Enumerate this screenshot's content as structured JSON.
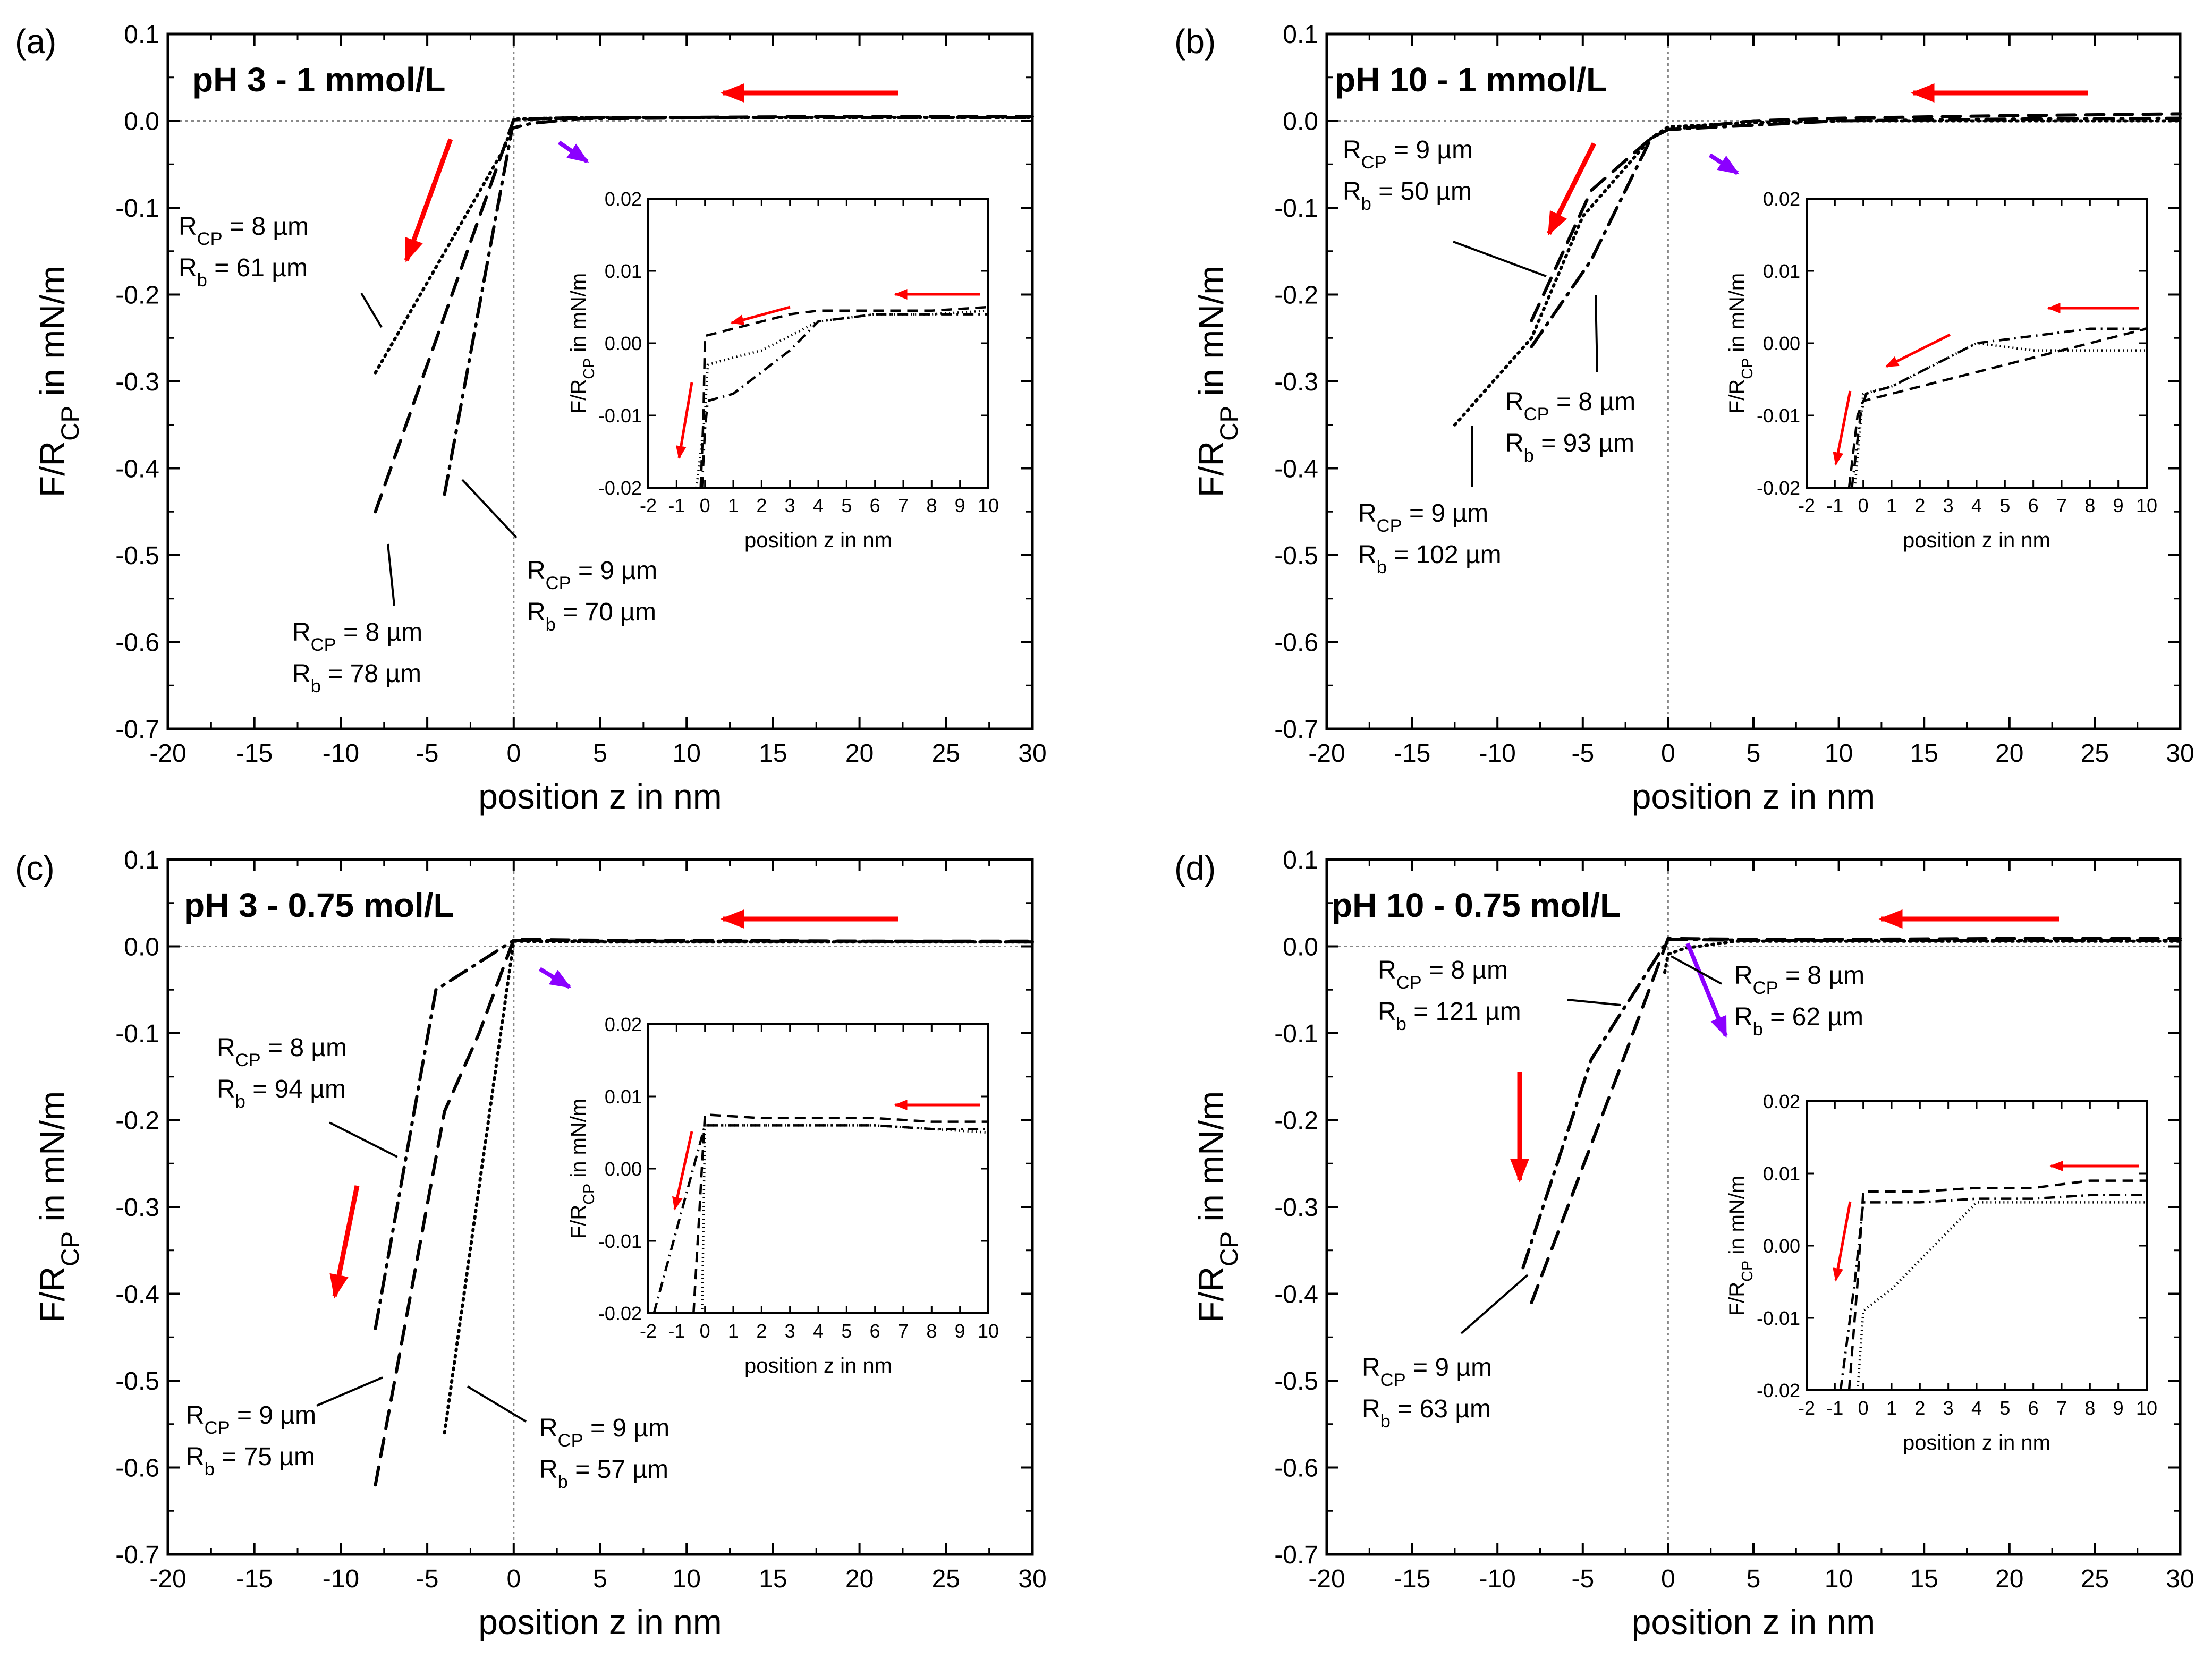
{
  "chart_data": [
    {
      "type": "line",
      "panel_label": "(a)",
      "title": "pH 3 - 1 mmol/L",
      "xlabel": "position z in nm",
      "ylabel": "F/R_CP in mN/m",
      "xlim": [
        -20,
        30
      ],
      "ylim": [
        -0.7,
        0.1
      ],
      "xticks": [
        "-20",
        "-15",
        "-10",
        "-5",
        "0",
        "5",
        "10",
        "15",
        "20",
        "25",
        "30"
      ],
      "yticks": [
        "0.1",
        "0.0",
        "-0.1",
        "-0.2",
        "-0.3",
        "-0.4",
        "-0.5",
        "-0.6",
        "-0.7"
      ],
      "series": [
        {
          "name": "R_CP = 8 µm, R_b = 61 µm",
          "style": "dotted",
          "x": [
            -8,
            -0.5,
            0,
            2,
            5,
            10,
            20,
            30
          ],
          "y": [
            -0.29,
            -0.03,
            0.002,
            0.003,
            0.004,
            0.004,
            0.004,
            0.004
          ]
        },
        {
          "name": "R_CP = 8 µm, R_b = 78 µm",
          "style": "dashed",
          "x": [
            -8,
            -0.2,
            0,
            2,
            5,
            10,
            20,
            30
          ],
          "y": [
            -0.45,
            -0.01,
            0.001,
            0.003,
            0.004,
            0.004,
            0.005,
            0.005
          ]
        },
        {
          "name": "R_CP = 9 µm, R_b = 70 µm",
          "style": "dashdot",
          "x": [
            -4,
            -0.1,
            0,
            1,
            4,
            10,
            20,
            30
          ],
          "y": [
            -0.43,
            -0.01,
            -0.008,
            -0.003,
            0.003,
            0.004,
            0.004,
            0.004
          ]
        }
      ],
      "annotations": [
        {
          "lines": [
            {
              "main": "R",
              "sub": "CP",
              "rest": " =   8 µm"
            },
            {
              "main": "R",
              "sub": "b",
              "rest": "  = 61 µm"
            }
          ]
        },
        {
          "lines": [
            {
              "main": "R",
              "sub": "CP",
              "rest": " =   8 µm"
            },
            {
              "main": "R",
              "sub": "b",
              "rest": "  = 78 µm"
            }
          ]
        },
        {
          "lines": [
            {
              "main": "R",
              "sub": "CP",
              "rest": " =  9 µm"
            },
            {
              "main": "R",
              "sub": "b",
              "rest": "  = 70 µm"
            }
          ]
        }
      ],
      "inset": {
        "xlabel": "position z in nm",
        "ylabel": "F/R_CP in mN/m",
        "xlim": [
          -2,
          10
        ],
        "ylim": [
          -0.02,
          0.02
        ],
        "xticks": [
          "-2",
          "-1",
          "0",
          "1",
          "2",
          "3",
          "4",
          "5",
          "6",
          "7",
          "8",
          "9",
          "10"
        ],
        "yticks": [
          "0.02",
          "0.01",
          "0.00",
          "-0.01",
          "-0.02"
        ],
        "series": [
          {
            "name": "dotted",
            "style": "dotted",
            "x": [
              -0.3,
              0,
              0.1,
              1,
              2,
              3,
              4,
              6,
              8,
              10
            ],
            "y": [
              -0.02,
              -0.01,
              -0.003,
              -0.002,
              -0.001,
              0.001,
              0.003,
              0.004,
              0.004,
              0.0045
            ]
          },
          {
            "name": "dashed",
            "style": "dashed",
            "x": [
              -0.15,
              -0.05,
              0,
              1,
              2,
              3,
              4,
              6,
              8,
              10
            ],
            "y": [
              -0.02,
              -0.01,
              0.001,
              0.002,
              0.003,
              0.004,
              0.0045,
              0.0045,
              0.0045,
              0.005
            ]
          },
          {
            "name": "dashdot",
            "style": "dashdot",
            "x": [
              -0.1,
              0,
              0.1,
              1,
              2,
              3,
              4,
              6,
              8,
              10
            ],
            "y": [
              -0.02,
              -0.012,
              -0.008,
              -0.007,
              -0.004,
              -0.001,
              0.003,
              0.004,
              0.004,
              0.004
            ]
          }
        ]
      }
    },
    {
      "type": "line",
      "panel_label": "(b)",
      "title": "pH 10 - 1 mmol/L",
      "xlabel": "position z in nm",
      "ylabel": "F/R_CP in mN/m",
      "xlim": [
        -20,
        30
      ],
      "ylim": [
        -0.7,
        0.1
      ],
      "xticks": [
        "-20",
        "-15",
        "-10",
        "-5",
        "0",
        "5",
        "10",
        "15",
        "20",
        "25",
        "30"
      ],
      "yticks": [
        "0.1",
        "0.0",
        "-0.1",
        "-0.2",
        "-0.3",
        "-0.4",
        "-0.5",
        "-0.6",
        "-0.7"
      ],
      "series": [
        {
          "name": "R_CP = 9 µm, R_b = 50 µm",
          "style": "dashed",
          "x": [
            -8,
            -4.5,
            -1,
            0,
            5,
            10,
            20,
            30
          ],
          "y": [
            -0.23,
            -0.08,
            -0.02,
            -0.01,
            0.0,
            0.003,
            0.006,
            0.008
          ]
        },
        {
          "name": "R_CP = 8 µm, R_b = 93 µm",
          "style": "dashdot",
          "x": [
            -8,
            -4.5,
            -1,
            0,
            5,
            10,
            20,
            30
          ],
          "y": [
            -0.26,
            -0.16,
            -0.02,
            -0.01,
            -0.005,
            0.0,
            0.002,
            0.003
          ]
        },
        {
          "name": "R_CP = 9 µm, R_b = 102 µm",
          "style": "dotted",
          "x": [
            -12.5,
            -8,
            -5,
            -1,
            0,
            5,
            10,
            20,
            30
          ],
          "y": [
            -0.35,
            -0.25,
            -0.11,
            -0.02,
            -0.007,
            -0.002,
            0.0,
            0.0,
            0.0
          ]
        }
      ],
      "annotations": [
        {
          "lines": [
            {
              "main": "R",
              "sub": "CP",
              "rest": " =   9 µm"
            },
            {
              "main": "R",
              "sub": "b",
              "rest": "  = 50 µm"
            }
          ]
        },
        {
          "lines": [
            {
              "main": "R",
              "sub": "CP",
              "rest": " =  8 µm"
            },
            {
              "main": "R",
              "sub": "b",
              "rest": "  = 93 µm"
            }
          ]
        },
        {
          "lines": [
            {
              "main": "R",
              "sub": "CP",
              "rest": " =    9 µm"
            },
            {
              "main": "R",
              "sub": "b",
              "rest": " = 102 µm"
            }
          ]
        }
      ],
      "inset": {
        "xlabel": "position z in nm",
        "ylabel": "F/R_CP in mN/m",
        "xlim": [
          -2,
          10
        ],
        "ylim": [
          -0.02,
          0.02
        ],
        "xticks": [
          "-2",
          "-1",
          "0",
          "1",
          "2",
          "3",
          "4",
          "5",
          "6",
          "7",
          "8",
          "9",
          "10"
        ],
        "yticks": [
          "0.02",
          "0.01",
          "0.00",
          "-0.01",
          "-0.02"
        ],
        "series": [
          {
            "name": "dotted",
            "style": "dotted",
            "x": [
              -0.3,
              0,
              1,
              2,
              3,
              4,
              6,
              8,
              10
            ],
            "y": [
              -0.02,
              -0.007,
              -0.006,
              -0.004,
              -0.002,
              0.0,
              -0.001,
              -0.001,
              -0.001
            ]
          },
          {
            "name": "dashed",
            "style": "dashed",
            "x": [
              -0.5,
              -0.2,
              0,
              1,
              2,
              4,
              6,
              8,
              10
            ],
            "y": [
              -0.02,
              -0.01,
              -0.008,
              -0.007,
              -0.006,
              -0.004,
              -0.002,
              0.0,
              0.002
            ]
          },
          {
            "name": "dashdot",
            "style": "dashdot",
            "x": [
              -0.4,
              -0.1,
              0.1,
              1,
              2,
              4,
              6,
              8,
              10
            ],
            "y": [
              -0.02,
              -0.01,
              -0.007,
              -0.006,
              -0.004,
              0.0,
              0.001,
              0.002,
              0.002
            ]
          }
        ]
      }
    },
    {
      "type": "line",
      "panel_label": "(c)",
      "title": "pH 3 - 0.75 mol/L",
      "xlabel": "position z in nm",
      "ylabel": "F/R_CP in mN/m",
      "xlim": [
        -20,
        30
      ],
      "ylim": [
        -0.7,
        0.1
      ],
      "xticks": [
        "-20",
        "-15",
        "-10",
        "-5",
        "0",
        "5",
        "10",
        "15",
        "20",
        "25",
        "30"
      ],
      "yticks": [
        "0.1",
        "0.0",
        "-0.1",
        "-0.2",
        "-0.3",
        "-0.4",
        "-0.5",
        "-0.6",
        "-0.7"
      ],
      "series": [
        {
          "name": "R_CP = 8 µm, R_b = 94 µm",
          "style": "dashdot",
          "x": [
            -8,
            -4.5,
            0,
            5,
            10,
            20,
            30
          ],
          "y": [
            -0.44,
            -0.05,
            0.007,
            0.006,
            0.006,
            0.006,
            0.005
          ]
        },
        {
          "name": "R_CP = 9 µm, R_b = 75 µm",
          "style": "dashed",
          "x": [
            -8,
            -4,
            -2,
            0,
            5,
            10,
            20,
            30
          ],
          "y": [
            -0.62,
            -0.19,
            -0.1,
            0.008,
            0.007,
            0.007,
            0.006,
            0.006
          ]
        },
        {
          "name": "R_CP = 9 µm, R_b = 57 µm",
          "style": "dotted",
          "x": [
            -4,
            0,
            5,
            10,
            20,
            30
          ],
          "y": [
            -0.56,
            0.006,
            0.005,
            0.005,
            0.005,
            0.005
          ]
        }
      ],
      "annotations": [
        {
          "lines": [
            {
              "main": "R",
              "sub": "CP",
              "rest": " =   8 µm"
            },
            {
              "main": "R",
              "sub": "b",
              "rest": "  = 94 µm"
            }
          ]
        },
        {
          "lines": [
            {
              "main": "R",
              "sub": "CP",
              "rest": " =   9 µm"
            },
            {
              "main": "R",
              "sub": "b",
              "rest": "  = 75 µm"
            }
          ]
        },
        {
          "lines": [
            {
              "main": "R",
              "sub": "CP",
              "rest": " =  9 µm"
            },
            {
              "main": "R",
              "sub": "b",
              "rest": "   = 57 µm"
            }
          ]
        }
      ],
      "inset": {
        "xlabel": "position z in nm",
        "ylabel": "F/R_CP in mN/m",
        "xlim": [
          -2,
          10
        ],
        "ylim": [
          -0.02,
          0.02
        ],
        "xticks": [
          "-2",
          "-1",
          "0",
          "1",
          "2",
          "3",
          "4",
          "5",
          "6",
          "7",
          "8",
          "9",
          "10"
        ],
        "yticks": [
          "0.02",
          "0.01",
          "0.00",
          "-0.01",
          "-0.02"
        ],
        "series": [
          {
            "name": "dotted",
            "style": "dotted",
            "x": [
              -0.1,
              0,
              2,
              4,
              6,
              8,
              10
            ],
            "y": [
              -0.02,
              0.006,
              0.006,
              0.006,
              0.006,
              0.0055,
              0.005
            ]
          },
          {
            "name": "dashed",
            "style": "dashed",
            "x": [
              -0.4,
              0,
              2,
              4,
              6,
              8,
              10
            ],
            "y": [
              -0.02,
              0.0075,
              0.007,
              0.007,
              0.007,
              0.0065,
              0.0065
            ]
          },
          {
            "name": "dashdot",
            "style": "dashdot",
            "x": [
              -1.8,
              0,
              2,
              4,
              6,
              8,
              10
            ],
            "y": [
              -0.02,
              0.006,
              0.006,
              0.006,
              0.006,
              0.0055,
              0.0055
            ]
          }
        ]
      }
    },
    {
      "type": "line",
      "panel_label": "(d)",
      "title": "pH 10 - 0.75 mol/L",
      "xlabel": "position z in nm",
      "ylabel": "F/R_CP in mN/m",
      "xlim": [
        -20,
        30
      ],
      "ylim": [
        -0.7,
        0.1
      ],
      "xticks": [
        "-20",
        "-15",
        "-10",
        "-5",
        "0",
        "5",
        "10",
        "15",
        "20",
        "25",
        "30"
      ],
      "yticks": [
        "0.1",
        "0.0",
        "-0.1",
        "-0.2",
        "-0.3",
        "-0.4",
        "-0.5",
        "-0.6",
        "-0.7"
      ],
      "series": [
        {
          "name": "R_CP = 8 µm, R_b = 121 µm",
          "style": "dashdot",
          "x": [
            -8.5,
            -4.5,
            0,
            5,
            10,
            20,
            30
          ],
          "y": [
            -0.37,
            -0.13,
            0.008,
            0.007,
            0.007,
            0.007,
            0.007
          ]
        },
        {
          "name": "R_CP = 9 µm, R_b = 63 µm",
          "style": "dashed",
          "x": [
            -8,
            -3,
            0,
            5,
            10,
            20,
            30
          ],
          "y": [
            -0.41,
            -0.15,
            0.009,
            0.008,
            0.008,
            0.009,
            0.009
          ]
        },
        {
          "name": "R_CP = 8 µm, R_b = 62 µm",
          "style": "dotted",
          "x": [
            -0.2,
            0,
            1,
            4,
            10,
            20,
            30
          ],
          "y": [
            -0.03,
            -0.009,
            -0.002,
            0.006,
            0.006,
            0.006,
            0.006
          ]
        }
      ],
      "annotations": [
        {
          "lines": [
            {
              "main": "R",
              "sub": "CP",
              "rest": " =     8 µm"
            },
            {
              "main": "R",
              "sub": "b",
              "rest": "  = 121 µm"
            }
          ]
        },
        {
          "lines": [
            {
              "main": "R",
              "sub": "CP",
              "rest": " =   9 µm"
            },
            {
              "main": "R",
              "sub": "b",
              "rest": "  = 63 µm"
            }
          ]
        },
        {
          "lines": [
            {
              "main": "R",
              "sub": "CP",
              "rest": " =  8 µm"
            },
            {
              "main": "R",
              "sub": "b",
              "rest": "   = 62 µm"
            }
          ]
        }
      ],
      "inset": {
        "xlabel": "position z in nm",
        "ylabel": "F/R_CP in mN/m",
        "xlim": [
          -2,
          10
        ],
        "ylim": [
          -0.02,
          0.02
        ],
        "xticks": [
          "-2",
          "-1",
          "0",
          "1",
          "2",
          "3",
          "4",
          "5",
          "6",
          "7",
          "8",
          "9",
          "10"
        ],
        "yticks": [
          "0.02",
          "0.01",
          "0.00",
          "-0.01",
          "-0.02"
        ],
        "series": [
          {
            "name": "dotted",
            "style": "dotted",
            "x": [
              -0.2,
              0,
              1,
              2,
              3,
              4,
              6,
              8,
              10
            ],
            "y": [
              -0.02,
              -0.009,
              -0.006,
              -0.002,
              0.002,
              0.006,
              0.006,
              0.006,
              0.006
            ]
          },
          {
            "name": "dashed",
            "style": "dashed",
            "x": [
              -0.5,
              -0.2,
              0,
              2,
              4,
              6,
              8,
              10
            ],
            "y": [
              -0.02,
              -0.005,
              0.0075,
              0.0075,
              0.008,
              0.008,
              0.009,
              0.009
            ]
          },
          {
            "name": "dashdot",
            "style": "dashdot",
            "x": [
              -0.8,
              -0.3,
              0,
              2,
              4,
              6,
              8,
              10
            ],
            "y": [
              -0.02,
              -0.005,
              0.006,
              0.006,
              0.0065,
              0.0065,
              0.007,
              0.007
            ]
          }
        ]
      }
    }
  ],
  "colors": {
    "arrow_red": "#ff0000",
    "arrow_purple": "#8b00ff",
    "line": "#000000",
    "zero_line": "#888888"
  }
}
